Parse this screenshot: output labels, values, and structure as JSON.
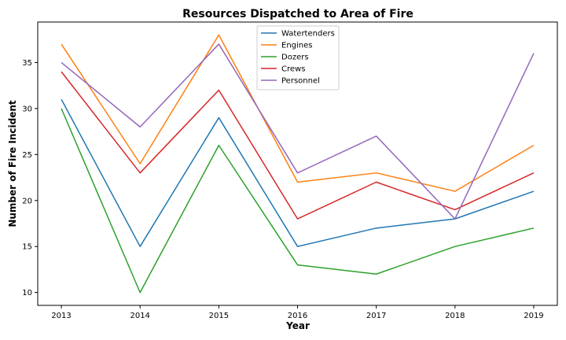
{
  "chart_data": {
    "type": "line",
    "title": "Resources Dispatched to Area of Fire",
    "xlabel": "Year",
    "ylabel": "Number of Fire Incident",
    "x": [
      2013,
      2014,
      2015,
      2016,
      2017,
      2018,
      2019
    ],
    "x_tick_labels": [
      "2013",
      "2014",
      "2015",
      "2016",
      "2017",
      "2018",
      "2019"
    ],
    "y_ticks": [
      10,
      15,
      20,
      25,
      30,
      35
    ],
    "y_tick_labels": [
      "10",
      "15",
      "20",
      "25",
      "30",
      "35"
    ],
    "ylim": [
      8.6,
      39.4
    ],
    "xlim": [
      2012.7,
      2019.3
    ],
    "grid": false,
    "legend_position": "top-center",
    "series": [
      {
        "name": "Watertenders",
        "color": "#1f77b4",
        "values": [
          31,
          15,
          29,
          15,
          17,
          18,
          21
        ]
      },
      {
        "name": "Engines",
        "color": "#ff7f0e",
        "values": [
          37,
          24,
          38,
          22,
          23,
          21,
          26
        ]
      },
      {
        "name": "Dozers",
        "color": "#2ca02c",
        "values": [
          30,
          10,
          26,
          13,
          12,
          15,
          17
        ]
      },
      {
        "name": "Crews",
        "color": "#d62728",
        "values": [
          34,
          23,
          32,
          18,
          22,
          19,
          23
        ]
      },
      {
        "name": "Personnel",
        "color": "#9467bd",
        "values": [
          35,
          28,
          37,
          23,
          27,
          18,
          36
        ]
      }
    ]
  }
}
